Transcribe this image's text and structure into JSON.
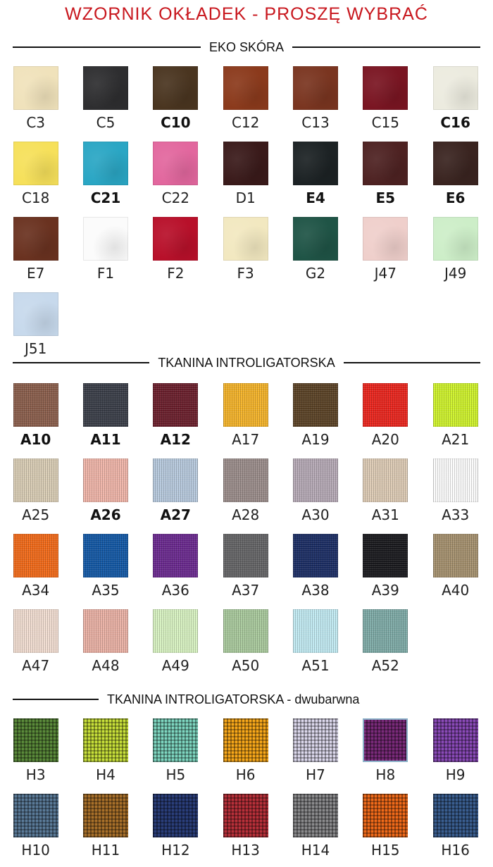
{
  "title": "WZORNIK OKŁADEK - PROSZĘ WYBRAĆ",
  "title_color": "#c8161d",
  "sections": [
    {
      "heading": "EKO SKÓRA",
      "items": [
        {
          "code": "C3",
          "color": "#f0e2bb",
          "bold": false
        },
        {
          "code": "C5",
          "color": "#2e2e30",
          "bold": false
        },
        {
          "code": "C10",
          "color": "#4a3520",
          "bold": true
        },
        {
          "code": "C12",
          "color": "#8b3a1c",
          "bold": false
        },
        {
          "code": "C13",
          "color": "#7a3520",
          "bold": false
        },
        {
          "code": "C15",
          "color": "#7a1522",
          "bold": false
        },
        {
          "code": "C16",
          "color": "#ecebdf",
          "bold": true
        },
        {
          "code": "C18",
          "color": "#f6e05a",
          "bold": false
        },
        {
          "code": "C21",
          "color": "#2aa6c4",
          "bold": true
        },
        {
          "code": "C22",
          "color": "#e2679e",
          "bold": false
        },
        {
          "code": "D1",
          "color": "#3a1a1a",
          "bold": false
        },
        {
          "code": "E4",
          "color": "#1c2224",
          "bold": true
        },
        {
          "code": "E5",
          "color": "#4e2222",
          "bold": true
        },
        {
          "code": "E6",
          "color": "#3a2420",
          "bold": true
        },
        {
          "code": "E7",
          "color": "#6a3220",
          "bold": false
        },
        {
          "code": "F1",
          "color": "#fbfbfb",
          "bold": false
        },
        {
          "code": "F2",
          "color": "#b8102a",
          "bold": false
        },
        {
          "code": "F3",
          "color": "#f2e8c0",
          "bold": false
        },
        {
          "code": "G2",
          "color": "#1f5446",
          "bold": false
        },
        {
          "code": "J47",
          "color": "#efcfcb",
          "bold": false
        },
        {
          "code": "J49",
          "color": "#cdeec8",
          "bold": false
        },
        {
          "code": "J51",
          "color": "#c7d9ec",
          "bold": false
        }
      ]
    },
    {
      "heading": "TKANINA INTROLIGATORSKA",
      "items": [
        {
          "code": "A10",
          "color": "#8a5e4c",
          "bold": true
        },
        {
          "code": "A11",
          "color": "#3a3e48",
          "bold": true
        },
        {
          "code": "A12",
          "color": "#6a1f2c",
          "bold": true
        },
        {
          "code": "A17",
          "color": "#f2b22a",
          "bold": false
        },
        {
          "code": "A19",
          "color": "#5a4226",
          "bold": false
        },
        {
          "code": "A20",
          "color": "#e8261e",
          "bold": false
        },
        {
          "code": "A21",
          "color": "#cdf02c",
          "bold": false
        },
        {
          "code": "A25",
          "color": "#d8ccb4",
          "bold": false
        },
        {
          "code": "A26",
          "color": "#eeb4a8",
          "bold": true
        },
        {
          "code": "A27",
          "color": "#b6c8dc",
          "bold": true
        },
        {
          "code": "A28",
          "color": "#9a8c8a",
          "bold": false
        },
        {
          "code": "A30",
          "color": "#b4a8b4",
          "bold": false
        },
        {
          "code": "A31",
          "color": "#dccab4",
          "bold": false
        },
        {
          "code": "A33",
          "color": "#fafafa",
          "bold": false
        },
        {
          "code": "A34",
          "color": "#f06a1a",
          "bold": false
        },
        {
          "code": "A35",
          "color": "#1458a4",
          "bold": false
        },
        {
          "code": "A36",
          "color": "#6a2a8e",
          "bold": false
        },
        {
          "code": "A37",
          "color": "#646466",
          "bold": false
        },
        {
          "code": "A38",
          "color": "#1c2e64",
          "bold": false
        },
        {
          "code": "A39",
          "color": "#1a1a1e",
          "bold": false
        },
        {
          "code": "A40",
          "color": "#a4906e",
          "bold": false
        },
        {
          "code": "A47",
          "color": "#f0dcd0",
          "bold": false
        },
        {
          "code": "A48",
          "color": "#e8b0a4",
          "bold": false
        },
        {
          "code": "A49",
          "color": "#d6f0c0",
          "bold": false
        },
        {
          "code": "A50",
          "color": "#a8c89c",
          "bold": false
        },
        {
          "code": "A51",
          "color": "#c0e8f0",
          "bold": false
        },
        {
          "code": "A52",
          "color": "#7eaaa6",
          "bold": false
        }
      ]
    },
    {
      "heading": "TKANINA INTROLIGATORSKA - dwubarwna",
      "items": [
        {
          "code": "H3",
          "color": "#5a8a3a",
          "bold": false
        },
        {
          "code": "H4",
          "color": "#c8e03a",
          "bold": false
        },
        {
          "code": "H5",
          "color": "#7ed6c0",
          "bold": false
        },
        {
          "code": "H6",
          "color": "#f8a81a",
          "bold": false
        },
        {
          "code": "H7",
          "color": "#dcd8ec",
          "bold": false
        },
        {
          "code": "H8",
          "color": "#7a2a7a",
          "bold": false
        },
        {
          "code": "H9",
          "color": "#8a4ab8",
          "bold": false
        },
        {
          "code": "H10",
          "color": "#5a7a98",
          "bold": false
        },
        {
          "code": "H11",
          "color": "#a8702a",
          "bold": false
        },
        {
          "code": "H12",
          "color": "#2a3e7a",
          "bold": false
        },
        {
          "code": "H13",
          "color": "#b8303a",
          "bold": false
        },
        {
          "code": "H14",
          "color": "#8a8a8c",
          "bold": false
        },
        {
          "code": "H15",
          "color": "#f06a1a",
          "bold": false
        },
        {
          "code": "H16",
          "color": "#3a5e90",
          "bold": false
        }
      ]
    }
  ]
}
